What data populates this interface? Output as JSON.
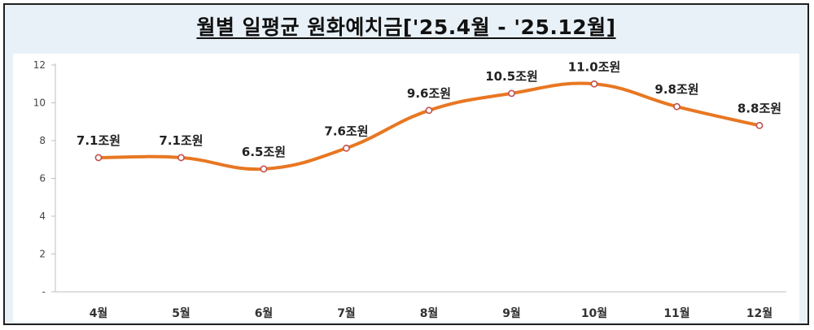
{
  "title": "월별 일평균 원화예치금['25.4월 - '25.12월]",
  "chart_data": {
    "type": "line",
    "title": "월별 일평균 원화예치금['25.4월 - '25.12월]",
    "categories": [
      "4월",
      "5월",
      "6월",
      "7월",
      "8월",
      "9월",
      "10월",
      "11월",
      "12월"
    ],
    "values": [
      7.1,
      7.1,
      6.5,
      7.6,
      9.6,
      10.5,
      11.0,
      9.8,
      8.8
    ],
    "data_labels": [
      "7.1조원",
      "7.1조원",
      "6.5조원",
      "7.6조원",
      "9.6조원",
      "10.5조원",
      "11.0조원",
      "9.8조원",
      "8.8조원"
    ],
    "y_ticks": [
      "-",
      "2",
      "4",
      "6",
      "8",
      "10",
      "12"
    ],
    "ylim": [
      0,
      12
    ],
    "xlabel": "",
    "ylabel": "",
    "line_color": "#e87722",
    "marker_color": "#c0504d",
    "grid": false,
    "legend": "none",
    "smooth": true
  }
}
